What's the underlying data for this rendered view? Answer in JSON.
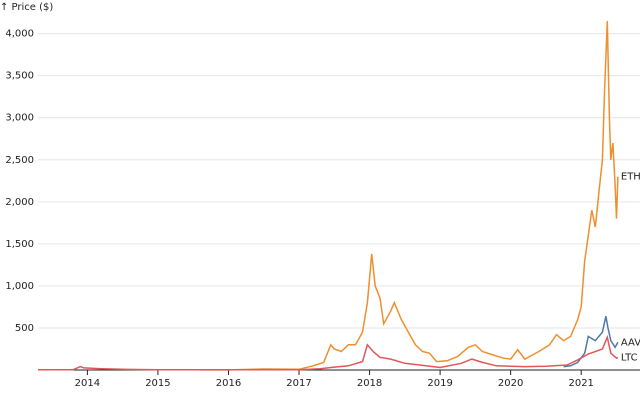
{
  "chart_data": {
    "type": "line",
    "y_label": "↑ Price ($)",
    "xlim": [
      2013.3,
      2021.55
    ],
    "xticks": [
      2014,
      2015,
      2016,
      2017,
      2018,
      2019,
      2020,
      2021
    ],
    "ylim": [
      0,
      4400
    ],
    "yticks": [
      500,
      {
        "value": 1000,
        "label": "1,000"
      },
      {
        "value": 1500,
        "label": "1,500"
      },
      {
        "value": 2000,
        "label": "2,000"
      },
      {
        "value": 2500,
        "label": "2,500"
      },
      {
        "value": 3000,
        "label": "3,000"
      },
      {
        "value": 3500,
        "label": "3,500"
      },
      {
        "value": 4000,
        "label": "4,000"
      }
    ],
    "grid": true,
    "series": [
      {
        "name": "ETH",
        "color": "#ef8f2f",
        "x": [
          2015.6,
          2016.0,
          2016.5,
          2017.0,
          2017.2,
          2017.35,
          2017.45,
          2017.5,
          2017.6,
          2017.7,
          2017.8,
          2017.9,
          2017.97,
          2018.03,
          2018.08,
          2018.15,
          2018.2,
          2018.3,
          2018.35,
          2018.45,
          2018.55,
          2018.65,
          2018.75,
          2018.85,
          2018.95,
          2019.1,
          2019.25,
          2019.4,
          2019.5,
          2019.6,
          2019.75,
          2019.9,
          2020.0,
          2020.1,
          2020.2,
          2020.4,
          2020.55,
          2020.65,
          2020.75,
          2020.85,
          2020.95,
          2021.0,
          2021.05,
          2021.1,
          2021.15,
          2021.2,
          2021.25,
          2021.3,
          2021.33,
          2021.37,
          2021.4,
          2021.42,
          2021.45,
          2021.48,
          2021.5,
          2021.52
        ],
        "values": [
          1,
          1,
          12,
          8,
          50,
          90,
          300,
          250,
          220,
          300,
          300,
          450,
          800,
          1380,
          1000,
          850,
          550,
          700,
          800,
          600,
          450,
          300,
          220,
          200,
          100,
          110,
          160,
          270,
          300,
          220,
          180,
          140,
          130,
          240,
          130,
          220,
          300,
          420,
          350,
          400,
          600,
          750,
          1300,
          1600,
          1900,
          1700,
          2100,
          2500,
          3300,
          4150,
          3000,
          2500,
          2700,
          2200,
          1800,
          2300
        ]
      },
      {
        "name": "AAV",
        "color": "#4e79a7",
        "x": [
          2020.75,
          2020.85,
          2020.95,
          2021.05,
          2021.1,
          2021.2,
          2021.3,
          2021.35,
          2021.38,
          2021.42,
          2021.48,
          2021.52
        ],
        "values": [
          40,
          50,
          90,
          200,
          400,
          350,
          450,
          640,
          500,
          350,
          270,
          330
        ]
      },
      {
        "name": "LTC",
        "color": "#e15759",
        "x": [
          2013.3,
          2013.8,
          2013.9,
          2013.95,
          2014.2,
          2014.5,
          2015.0,
          2016.0,
          2017.0,
          2017.3,
          2017.45,
          2017.7,
          2017.9,
          2017.97,
          2018.05,
          2018.15,
          2018.3,
          2018.5,
          2018.8,
          2019.0,
          2019.3,
          2019.45,
          2019.6,
          2019.8,
          2020.0,
          2020.2,
          2020.5,
          2020.8,
          2020.95,
          2021.1,
          2021.3,
          2021.37,
          2021.42,
          2021.5,
          2021.52
        ],
        "values": [
          3,
          3,
          40,
          25,
          15,
          8,
          3,
          3,
          4,
          15,
          30,
          50,
          100,
          300,
          220,
          150,
          130,
          80,
          50,
          30,
          80,
          130,
          90,
          50,
          45,
          40,
          45,
          60,
          120,
          190,
          250,
          390,
          200,
          140,
          150
        ]
      }
    ]
  }
}
